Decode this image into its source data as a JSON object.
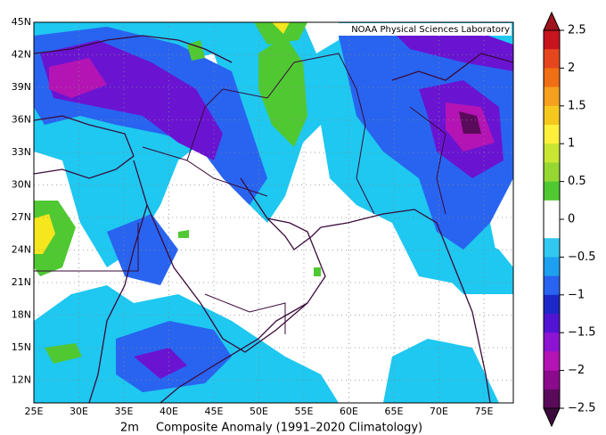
{
  "map": {
    "credit": "NOAA Physical Sciences Laboratory",
    "caption_level": "2m",
    "caption": "Composite Anomaly (1991–2020 Climatology)",
    "lat_labels": [
      "45N",
      "42N",
      "39N",
      "36N",
      "33N",
      "30N",
      "27N",
      "24N",
      "21N",
      "18N",
      "15N",
      "12N"
    ],
    "lon_labels": [
      "25E",
      "30E",
      "35E",
      "40E",
      "45E",
      "50E",
      "55E",
      "60E",
      "65E",
      "70E",
      "75E"
    ],
    "colorbar_labels": [
      "2.5",
      "2",
      "1.5",
      "1",
      "0.5",
      "0",
      "−0.5",
      "−1",
      "−1.5",
      "−2",
      "−2.5"
    ]
  }
}
